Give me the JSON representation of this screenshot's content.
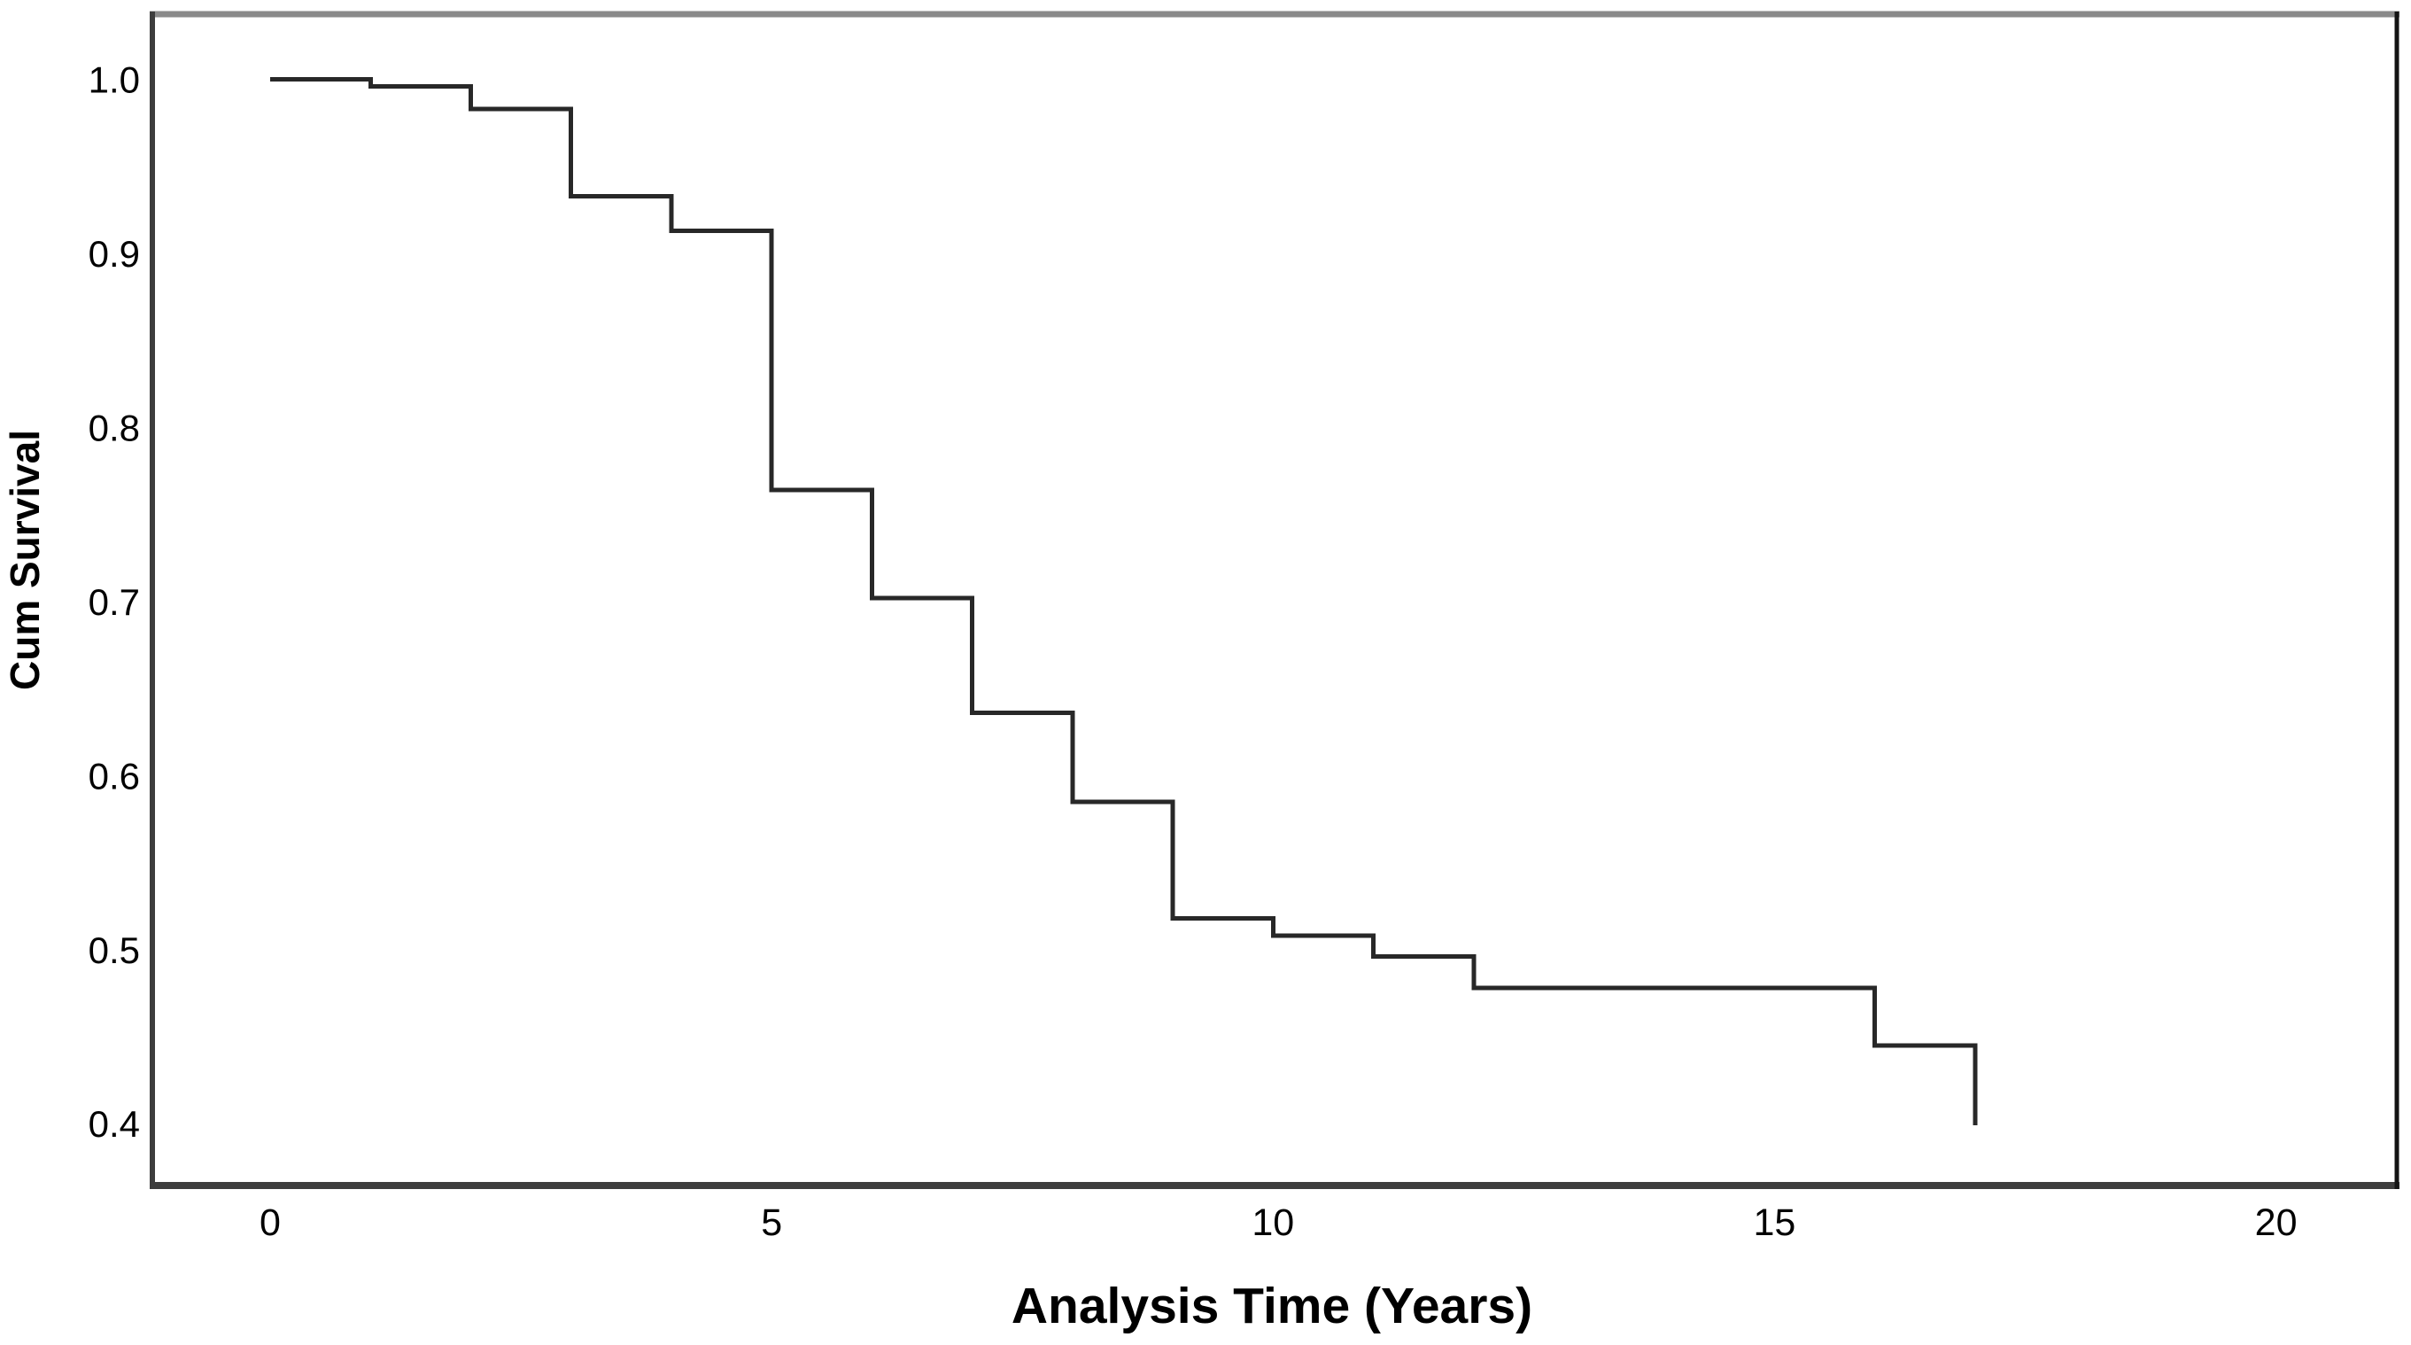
{
  "page": {
    "background_color": "#ffffff",
    "frame_border_color": "#3d3d3d",
    "frame_top_color": "#8a8a8a",
    "curve_color": "#282828",
    "text_color": "#000000"
  },
  "chart_data": {
    "type": "line",
    "variant": "kaplan-meier-step-curve",
    "title": "",
    "xlabel": "Analysis Time (Years)",
    "ylabel": "Cum Survival",
    "x_tick_labels": [
      "0",
      "5",
      "10",
      "15",
      "20"
    ],
    "y_tick_labels": [
      "1.0",
      "0.9",
      "0.8",
      "0.7",
      "0.6",
      "0.5",
      "0.4"
    ],
    "xlim": [
      -1.175,
      21.205
    ],
    "ylim": [
      0.365,
      1.038
    ],
    "grid": false,
    "legend": "none",
    "series": [
      {
        "points": [
          [
            0,
            1.0
          ],
          [
            1,
            0.996
          ],
          [
            2,
            0.983
          ],
          [
            3,
            0.933
          ],
          [
            4,
            0.913
          ],
          [
            5,
            0.764
          ],
          [
            6,
            0.702
          ],
          [
            7,
            0.636
          ],
          [
            8,
            0.585
          ],
          [
            9,
            0.518
          ],
          [
            10,
            0.508
          ],
          [
            11,
            0.496
          ],
          [
            12,
            0.478
          ],
          [
            16,
            0.445
          ],
          [
            17,
            0.399
          ]
        ],
        "end_behavior": "terminal-vertical-drop-at-last-event"
      }
    ]
  }
}
